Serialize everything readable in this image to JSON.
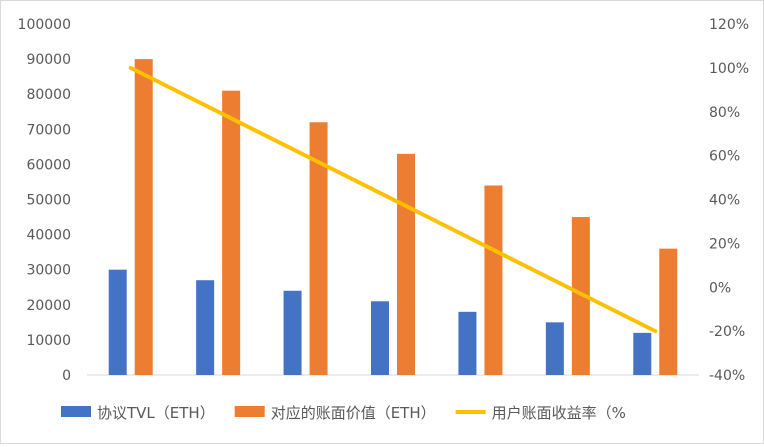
{
  "chart_data": {
    "type": "bar",
    "categories": [
      "",
      "",
      "",
      "",
      "",
      "",
      ""
    ],
    "series": [
      {
        "name": "协议TVL（ETH）",
        "kind": "bar",
        "axis": "left",
        "color": "#4472C4",
        "values": [
          30000,
          27000,
          24000,
          21000,
          18000,
          15000,
          12000
        ]
      },
      {
        "name": "对应的账面价值（ETH）",
        "kind": "bar",
        "axis": "left",
        "color": "#ED7D31",
        "values": [
          90000,
          81000,
          72000,
          63000,
          54000,
          45000,
          36000
        ]
      },
      {
        "name": "用户账面收益率（%",
        "kind": "line",
        "axis": "right",
        "color": "#FFC000",
        "values": [
          100,
          80,
          60,
          40,
          20,
          0,
          -20
        ]
      }
    ],
    "y_left": {
      "min": 0,
      "max": 100000,
      "step": 10000,
      "tick_labels": [
        "0",
        "10000",
        "20000",
        "30000",
        "40000",
        "50000",
        "60000",
        "70000",
        "80000",
        "90000",
        "100000"
      ]
    },
    "y_right": {
      "min": -40,
      "max": 120,
      "step": 20,
      "tick_labels": [
        "-40%",
        "-20%",
        "0%",
        "20%",
        "40%",
        "60%",
        "80%",
        "100%",
        "120%"
      ]
    },
    "grid": false,
    "legend_position": "bottom"
  }
}
